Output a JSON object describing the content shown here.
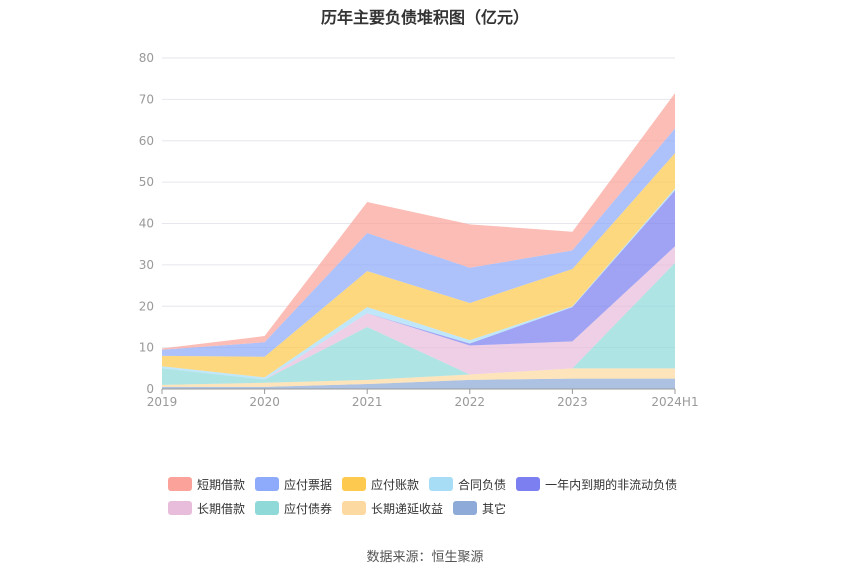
{
  "chart_data": {
    "type": "area",
    "title": "历年主要负债堆积图（亿元）",
    "categories": [
      "2019",
      "2020",
      "2021",
      "2022",
      "2023",
      "2024H1"
    ],
    "ylim": [
      0,
      80
    ],
    "yticks": [
      "0",
      "10",
      "20",
      "30",
      "40",
      "50",
      "60",
      "70",
      "80"
    ],
    "grid": true,
    "legend_position": "bottom",
    "series": [
      {
        "name": "其它",
        "color": "#8eaad8",
        "values": [
          0.5,
          0.5,
          1.2,
          2.2,
          2.5,
          2.5
        ]
      },
      {
        "name": "长期递延收益",
        "color": "#fcd9a0",
        "values": [
          0.5,
          1.0,
          1.0,
          1.3,
          2.5,
          2.5
        ]
      },
      {
        "name": "应付债券",
        "color": "#8fd9d9",
        "values": [
          4.0,
          0.8,
          12.8,
          0,
          0,
          25.5
        ]
      },
      {
        "name": "长期借款",
        "color": "#e8bcdb",
        "values": [
          0,
          0,
          3.3,
          7.0,
          6.5,
          4.0
        ]
      },
      {
        "name": "一年内到期的非流动负债",
        "color": "#7b7ff0",
        "values": [
          0,
          0,
          0,
          0.5,
          8.3,
          13.5
        ]
      },
      {
        "name": "合同负债",
        "color": "#a8ddf6",
        "values": [
          0.5,
          0.5,
          1.5,
          0.8,
          0.2,
          0.5
        ]
      },
      {
        "name": "应付账款",
        "color": "#fdc94e",
        "values": [
          2.5,
          5.0,
          8.7,
          9.0,
          9.0,
          8.5
        ]
      },
      {
        "name": "应付票据",
        "color": "#8eaafa",
        "values": [
          1.5,
          3.5,
          9.2,
          8.5,
          4.5,
          6.0
        ]
      },
      {
        "name": "短期借款",
        "color": "#fba39a",
        "values": [
          0.3,
          1.5,
          7.5,
          10.5,
          4.5,
          8.5
        ]
      }
    ]
  },
  "legend": {
    "row1": [
      "短期借款",
      "应付票据",
      "应付账款",
      "合同负债",
      "一年内到期的非流动负债"
    ],
    "row2": [
      "长期借款",
      "应付债券",
      "长期递延收益",
      "其它"
    ]
  },
  "source": "数据来源：恒生聚源"
}
